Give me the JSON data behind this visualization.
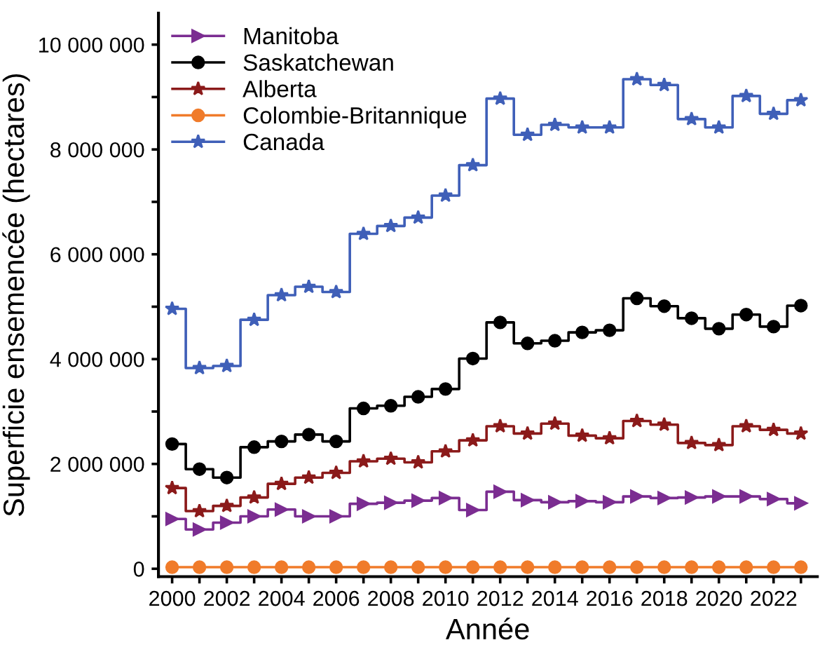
{
  "chart_data": {
    "type": "step",
    "xlabel": "Année",
    "ylabel": "Superficie ensemencée (hectares)",
    "x": [
      2000,
      2001,
      2002,
      2003,
      2004,
      2005,
      2006,
      2007,
      2008,
      2009,
      2010,
      2011,
      2012,
      2013,
      2014,
      2015,
      2016,
      2017,
      2018,
      2019,
      2020,
      2021,
      2022,
      2023
    ],
    "series": [
      {
        "name": "Manitoba",
        "color": "#7b2d91",
        "marker": "triangle",
        "values": [
          950000,
          750000,
          880000,
          1000000,
          1130000,
          1000000,
          1000000,
          1240000,
          1260000,
          1300000,
          1350000,
          1120000,
          1470000,
          1310000,
          1270000,
          1290000,
          1270000,
          1380000,
          1350000,
          1360000,
          1380000,
          1380000,
          1330000,
          1250000
        ]
      },
      {
        "name": "Saskatchewan",
        "color": "#000000",
        "marker": "circle",
        "values": [
          2380000,
          1900000,
          1740000,
          2320000,
          2430000,
          2560000,
          2430000,
          3060000,
          3110000,
          3280000,
          3430000,
          4010000,
          4700000,
          4300000,
          4350000,
          4510000,
          4550000,
          5160000,
          5010000,
          4780000,
          4580000,
          4850000,
          4620000,
          5020000
        ]
      },
      {
        "name": "Alberta",
        "color": "#8b1a1a",
        "marker": "star",
        "values": [
          1540000,
          1100000,
          1200000,
          1360000,
          1620000,
          1740000,
          1830000,
          2050000,
          2100000,
          2030000,
          2240000,
          2450000,
          2720000,
          2580000,
          2770000,
          2540000,
          2490000,
          2820000,
          2750000,
          2400000,
          2360000,
          2720000,
          2650000,
          2580000
        ]
      },
      {
        "name": "Colombie-Britannique",
        "color": "#f07b2a",
        "marker": "circle",
        "values": [
          30000,
          30000,
          30000,
          30000,
          30000,
          30000,
          30000,
          30000,
          30000,
          30000,
          30000,
          30000,
          30000,
          30000,
          30000,
          30000,
          30000,
          30000,
          30000,
          30000,
          30000,
          30000,
          30000,
          30000
        ]
      },
      {
        "name": "Canada",
        "color": "#3f5fb8",
        "marker": "star",
        "values": [
          4960000,
          3830000,
          3870000,
          4750000,
          5220000,
          5380000,
          5280000,
          6390000,
          6540000,
          6700000,
          7120000,
          7700000,
          8970000,
          8280000,
          8470000,
          8420000,
          8420000,
          9340000,
          9230000,
          8580000,
          8420000,
          9020000,
          8680000,
          8940000
        ]
      }
    ],
    "xlim": [
      1999.5,
      2023.6
    ],
    "xticks": [
      2000,
      {
        "value": 2001,
        "label": null
      },
      2002,
      {
        "value": 2003,
        "label": null
      },
      2004,
      {
        "value": 2005,
        "label": null
      },
      2006,
      {
        "value": 2007,
        "label": null
      },
      2008,
      {
        "value": 2009,
        "label": null
      },
      2010,
      {
        "value": 2011,
        "label": null
      },
      2012,
      {
        "value": 2013,
        "label": null
      },
      2014,
      {
        "value": 2015,
        "label": null
      },
      2016,
      {
        "value": 2017,
        "label": null
      },
      2018,
      {
        "value": 2019,
        "label": null
      },
      2020,
      {
        "value": 2021,
        "label": null
      },
      2022,
      {
        "value": 2023,
        "label": null
      }
    ],
    "ylim": [
      -150000,
      10600000
    ],
    "yticks": [
      0,
      {
        "value": 1000000,
        "label": null
      },
      {
        "value": 2000000,
        "label": "2 000 000"
      },
      {
        "value": 3000000,
        "label": null
      },
      {
        "value": 4000000,
        "label": "4 000 000"
      },
      {
        "value": 5000000,
        "label": null
      },
      {
        "value": 6000000,
        "label": "6 000 000"
      },
      {
        "value": 7000000,
        "label": null
      },
      {
        "value": 8000000,
        "label": "8 000 000"
      },
      {
        "value": 9000000,
        "label": null
      },
      {
        "value": 10000000,
        "label": "10 000 000"
      }
    ],
    "grid": false,
    "legend": "top left",
    "line_style": "solid"
  }
}
